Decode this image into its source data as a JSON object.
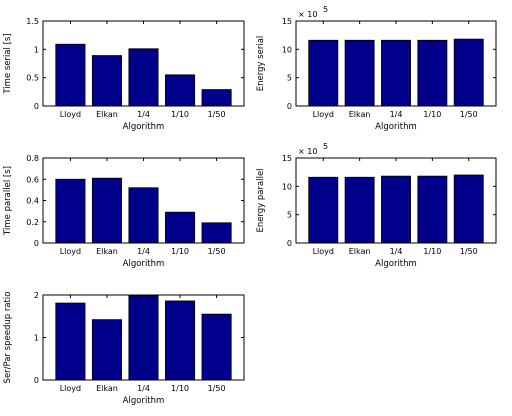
{
  "chart_data": [
    {
      "type": "bar",
      "categories": [
        "Lloyd",
        "Elkan",
        "1/4",
        "1/10",
        "1/50"
      ],
      "values": [
        1.09,
        0.89,
        1.01,
        0.55,
        0.29
      ],
      "xlabel": "Algorithm",
      "ylabel": "Time serial [s]",
      "ylim": [
        0,
        1.5
      ],
      "yticks": [
        "0",
        "0.5",
        "1",
        "1.5"
      ],
      "bar_color": "#00008b"
    },
    {
      "type": "bar",
      "categories": [
        "Lloyd",
        "Elkan",
        "1/4",
        "1/10",
        "1/50"
      ],
      "values": [
        11.6,
        11.6,
        11.6,
        11.6,
        11.8
      ],
      "xlabel": "Algorithm",
      "ylabel": "Energy serial",
      "ylim": [
        0,
        15
      ],
      "yticks": [
        "0",
        "5",
        "10",
        "15"
      ],
      "exponent_base": "× 10",
      "exponent_power": "5",
      "bar_color": "#00008b"
    },
    {
      "type": "bar",
      "categories": [
        "Lloyd",
        "Elkan",
        "1/4",
        "1/10",
        "1/50"
      ],
      "values": [
        0.6,
        0.61,
        0.52,
        0.29,
        0.19
      ],
      "xlabel": "Algorithm",
      "ylabel": "Time parallel [s]",
      "ylim": [
        0,
        0.8
      ],
      "yticks": [
        "0",
        "0.2",
        "0.4",
        "0.6",
        "0.8"
      ],
      "bar_color": "#00008b"
    },
    {
      "type": "bar",
      "categories": [
        "Lloyd",
        "Elkan",
        "1/4",
        "1/10",
        "1/50"
      ],
      "values": [
        11.6,
        11.6,
        11.8,
        11.8,
        12.0
      ],
      "xlabel": "Algorithm",
      "ylabel": "Energy parallel",
      "ylim": [
        0,
        15
      ],
      "yticks": [
        "0",
        "5",
        "10",
        "15"
      ],
      "exponent_base": "× 10",
      "exponent_power": "5",
      "bar_color": "#00008b"
    },
    {
      "type": "bar",
      "categories": [
        "Lloyd",
        "Elkan",
        "1/4",
        "1/10",
        "1/50"
      ],
      "values": [
        1.81,
        1.42,
        1.98,
        1.86,
        1.55
      ],
      "xlabel": "Algorithm",
      "ylabel": "Ser/Par speedup ratio",
      "ylim": [
        0,
        2
      ],
      "yticks": [
        "0",
        "1",
        "2"
      ],
      "bar_color": "#00008b"
    }
  ]
}
